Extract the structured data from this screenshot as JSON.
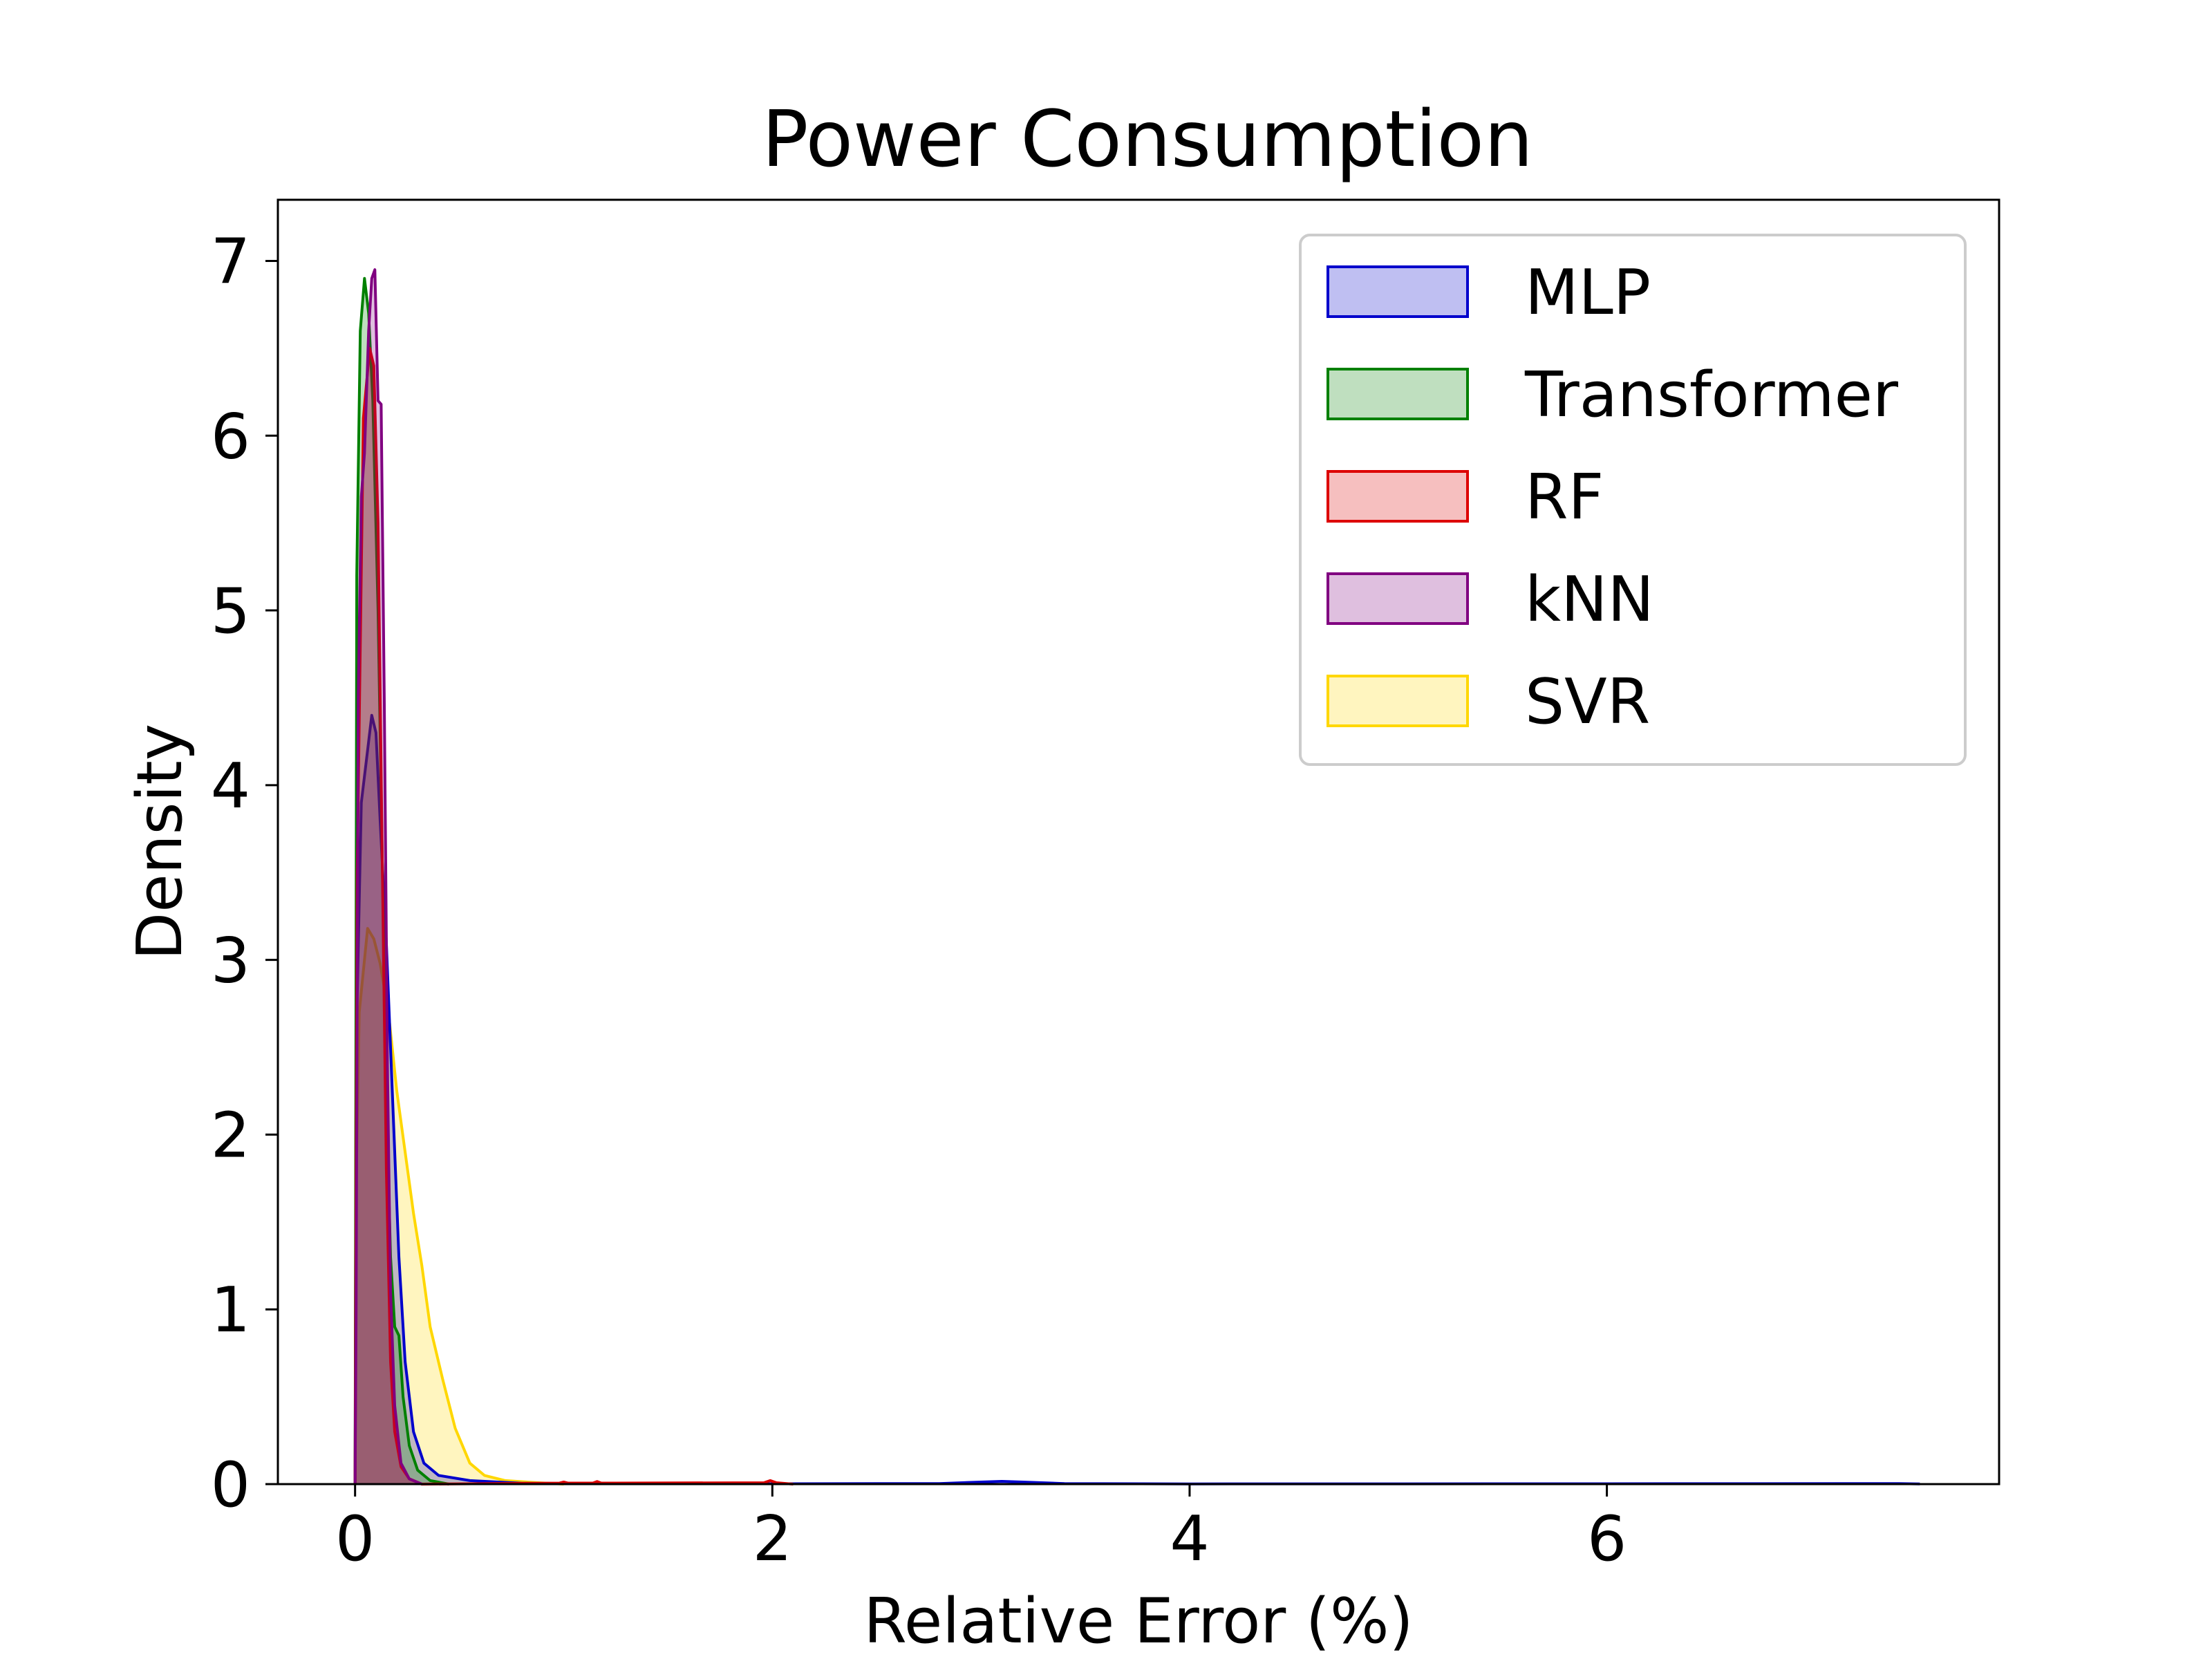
{
  "chart_data": {
    "type": "area",
    "title": "Power Consumption",
    "xlabel": "Relative Error (%)",
    "ylabel": "Density",
    "xlim": [
      -0.37,
      7.88
    ],
    "ylim": [
      0,
      7.35
    ],
    "xticks": [
      0,
      2,
      4,
      6
    ],
    "yticks": [
      0,
      1,
      2,
      3,
      4,
      5,
      6,
      7
    ],
    "grid": false,
    "legend_position": "upper right",
    "series": [
      {
        "name": "SVR",
        "color": "#FFD700",
        "points": [
          [
            0,
            0
          ],
          [
            0.005,
            1.7
          ],
          [
            0.02,
            2.7
          ],
          [
            0.06,
            3.18
          ],
          [
            0.09,
            3.12
          ],
          [
            0.12,
            2.98
          ],
          [
            0.16,
            2.7
          ],
          [
            0.2,
            2.25
          ],
          [
            0.24,
            1.9
          ],
          [
            0.28,
            1.55
          ],
          [
            0.32,
            1.25
          ],
          [
            0.36,
            0.9
          ],
          [
            0.42,
            0.6
          ],
          [
            0.48,
            0.32
          ],
          [
            0.55,
            0.12
          ],
          [
            0.62,
            0.05
          ],
          [
            0.72,
            0.02
          ],
          [
            0.85,
            0.01
          ],
          [
            1.0,
            0
          ]
        ]
      },
      {
        "name": "MLP",
        "color": "#0000CC",
        "points": [
          [
            0,
            0
          ],
          [
            0.005,
            2.5
          ],
          [
            0.03,
            3.9
          ],
          [
            0.06,
            4.2
          ],
          [
            0.08,
            4.4
          ],
          [
            0.1,
            4.3
          ],
          [
            0.12,
            3.8
          ],
          [
            0.15,
            3.1
          ],
          [
            0.18,
            2.2
          ],
          [
            0.21,
            1.3
          ],
          [
            0.24,
            0.7
          ],
          [
            0.28,
            0.3
          ],
          [
            0.33,
            0.12
          ],
          [
            0.4,
            0.05
          ],
          [
            0.55,
            0.02
          ],
          [
            0.8,
            0.005
          ],
          [
            1.2,
            0.002
          ],
          [
            2.0,
            0.002
          ],
          [
            2.8,
            0.003
          ],
          [
            3.0,
            0.012
          ],
          [
            3.1,
            0.016
          ],
          [
            3.2,
            0.012
          ],
          [
            3.4,
            0.003
          ],
          [
            4.0,
            0.001
          ],
          [
            6.0,
            0.002
          ],
          [
            7.2,
            0.003
          ],
          [
            7.4,
            0.003
          ],
          [
            7.5,
            0.001
          ]
        ]
      },
      {
        "name": "Transformer",
        "color": "#008000",
        "points": [
          [
            0,
            0
          ],
          [
            0.008,
            5.2
          ],
          [
            0.025,
            6.6
          ],
          [
            0.045,
            6.9
          ],
          [
            0.065,
            6.7
          ],
          [
            0.085,
            6.2
          ],
          [
            0.11,
            5.0
          ],
          [
            0.13,
            3.6
          ],
          [
            0.15,
            2.2
          ],
          [
            0.17,
            1.3
          ],
          [
            0.19,
            0.9
          ],
          [
            0.21,
            0.85
          ],
          [
            0.23,
            0.5
          ],
          [
            0.26,
            0.22
          ],
          [
            0.3,
            0.08
          ],
          [
            0.36,
            0.02
          ],
          [
            0.45,
            0
          ]
        ]
      },
      {
        "name": "RF",
        "color": "#DD0000",
        "points": [
          [
            0,
            0
          ],
          [
            0.01,
            3.5
          ],
          [
            0.04,
            6.1
          ],
          [
            0.07,
            6.5
          ],
          [
            0.09,
            6.4
          ],
          [
            0.11,
            5.5
          ],
          [
            0.13,
            3.6
          ],
          [
            0.15,
            1.8
          ],
          [
            0.17,
            0.7
          ],
          [
            0.19,
            0.3
          ],
          [
            0.22,
            0.1
          ],
          [
            0.26,
            0.03
          ],
          [
            0.32,
            0
          ],
          [
            0.98,
            0.006
          ],
          [
            1.0,
            0.012
          ],
          [
            1.02,
            0.006
          ],
          [
            1.14,
            0.006
          ],
          [
            1.16,
            0.015
          ],
          [
            1.18,
            0.006
          ],
          [
            1.96,
            0.008
          ],
          [
            1.99,
            0.02
          ],
          [
            2.02,
            0.008
          ],
          [
            2.1,
            0
          ]
        ]
      },
      {
        "name": "kNN",
        "color": "#800080",
        "points": [
          [
            0,
            0
          ],
          [
            0.005,
            1.0
          ],
          [
            0.015,
            4.5
          ],
          [
            0.03,
            5.65
          ],
          [
            0.045,
            5.9
          ],
          [
            0.065,
            6.6
          ],
          [
            0.08,
            6.9
          ],
          [
            0.095,
            6.95
          ],
          [
            0.11,
            6.2
          ],
          [
            0.125,
            6.18
          ],
          [
            0.14,
            4.5
          ],
          [
            0.155,
            2.4
          ],
          [
            0.17,
            1.1
          ],
          [
            0.19,
            0.45
          ],
          [
            0.22,
            0.12
          ],
          [
            0.26,
            0.03
          ],
          [
            0.32,
            0
          ]
        ]
      }
    ],
    "legend_order": [
      "MLP",
      "Transformer",
      "RF",
      "kNN",
      "SVR"
    ]
  }
}
